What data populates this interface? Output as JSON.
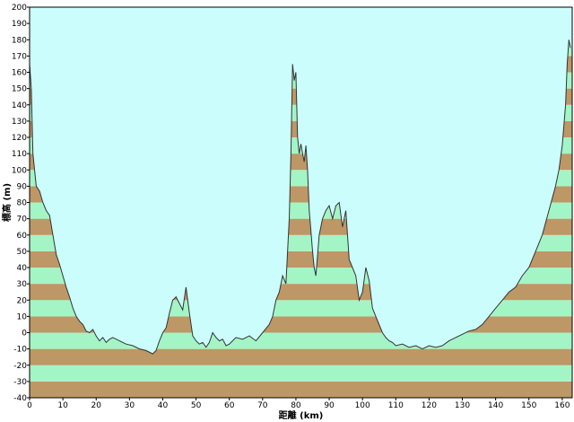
{
  "chart_data": {
    "type": "area",
    "xlabel": "距離 (km)",
    "ylabel": "標高 (m)",
    "xlim": [
      0,
      163
    ],
    "ylim": [
      -40,
      200
    ],
    "xticks": [
      0,
      10,
      20,
      30,
      40,
      50,
      60,
      70,
      80,
      90,
      100,
      110,
      120,
      130,
      140,
      150,
      160
    ],
    "yticks": [
      -40,
      -30,
      -20,
      -10,
      0,
      10,
      20,
      30,
      40,
      50,
      60,
      70,
      80,
      90,
      100,
      110,
      120,
      130,
      140,
      150,
      160,
      170,
      180,
      190,
      200
    ],
    "colors": {
      "sky": "#ccfdfd",
      "band_light": "#a3f5c6",
      "band_dark": "#bd9765",
      "profile_line": "#333333",
      "frame": "#000000"
    },
    "series": [
      {
        "x": [
          0,
          0.5,
          1,
          2,
          3,
          4,
          5,
          6,
          7,
          8,
          9,
          10,
          11,
          12,
          13,
          14,
          15,
          16,
          17,
          18,
          19,
          20,
          21,
          22,
          23,
          24,
          25,
          27,
          29,
          31,
          33,
          35,
          37,
          38,
          39,
          40,
          41,
          42,
          43,
          44,
          45,
          46,
          47,
          48,
          49,
          50,
          51,
          52,
          53,
          54,
          55,
          56,
          57,
          58,
          59,
          60,
          62,
          64,
          66,
          68,
          70,
          72,
          73,
          74,
          75,
          76,
          77,
          78,
          78.5,
          79,
          79.5,
          80,
          80.5,
          81,
          81.5,
          82,
          82.5,
          83,
          83.5,
          84,
          84.5,
          85,
          85.5,
          86,
          87,
          88,
          89,
          90,
          91,
          92,
          93,
          94,
          95,
          96,
          97,
          98,
          99,
          100,
          101,
          102,
          103,
          104,
          105,
          106,
          107,
          108,
          109,
          110,
          112,
          114,
          116,
          118,
          120,
          122,
          124,
          126,
          128,
          130,
          132,
          134,
          136,
          138,
          140,
          142,
          144,
          146,
          148,
          150,
          152,
          154,
          156,
          158,
          159,
          160,
          161,
          161.5,
          162,
          162.5
        ],
        "y": [
          165,
          150,
          110,
          90,
          87,
          80,
          75,
          72,
          60,
          48,
          42,
          35,
          28,
          22,
          15,
          10,
          7,
          5,
          1,
          0,
          2,
          -2,
          -5,
          -3,
          -6,
          -4,
          -3,
          -5,
          -7,
          -8,
          -10,
          -11,
          -13,
          -11,
          -5,
          0,
          3,
          12,
          20,
          22,
          18,
          14,
          28,
          12,
          -2,
          -5,
          -7,
          -6,
          -9,
          -6,
          0,
          -3,
          -5,
          -4,
          -8,
          -7,
          -3,
          -4,
          -2,
          -5,
          0,
          5,
          10,
          20,
          25,
          35,
          30,
          70,
          110,
          165,
          155,
          160,
          120,
          110,
          116,
          110,
          105,
          115,
          100,
          75,
          63,
          50,
          40,
          35,
          60,
          70,
          75,
          78,
          70,
          78,
          80,
          65,
          75,
          45,
          40,
          35,
          20,
          25,
          40,
          32,
          15,
          10,
          5,
          0,
          -3,
          -5,
          -6,
          -8,
          -7,
          -9,
          -8,
          -10,
          -8,
          -9,
          -8,
          -5,
          -3,
          -1,
          1,
          2,
          5,
          10,
          15,
          20,
          25,
          28,
          35,
          40,
          50,
          60,
          75,
          90,
          100,
          115,
          140,
          165,
          180,
          175
        ]
      }
    ]
  }
}
